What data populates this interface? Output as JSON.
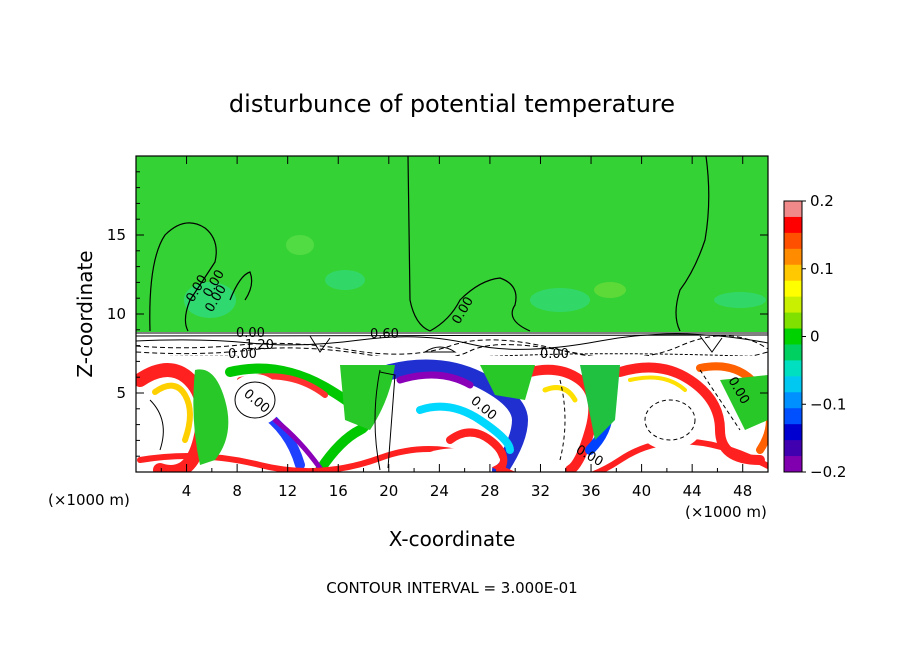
{
  "chart_data": {
    "type": "heatmap",
    "title": "disturbunce of potential temperature",
    "xlabel": "X-coordinate",
    "ylabel": "Z-coordinate",
    "x_unit_label_left": "(×1000 m)",
    "x_unit_label_right": "(×1000 m)",
    "xlim": [
      0,
      50
    ],
    "ylim": [
      0,
      20
    ],
    "xticks": [
      4,
      8,
      12,
      16,
      20,
      24,
      28,
      32,
      36,
      40,
      44,
      48
    ],
    "yticks": [
      5,
      10,
      15
    ],
    "footer": "CONTOUR INTERVAL = 3.000E-01",
    "colorbar": {
      "min": -0.2,
      "max": 0.2,
      "ticks": [
        0.2,
        0.1,
        0,
        -0.1,
        -0.2
      ],
      "tick_labels": [
        "0.2",
        "0.1",
        "0",
        "−0.1",
        "−0.2"
      ],
      "colors": [
        "#f08a8a",
        "#ff0000",
        "#ff5000",
        "#ff8c00",
        "#ffc800",
        "#ffff00",
        "#c8f000",
        "#80e000",
        "#00d200",
        "#00d060",
        "#00e0c0",
        "#00c8f0",
        "#0090ff",
        "#0050ff",
        "#0000d0",
        "#4000b0",
        "#8000b0"
      ]
    },
    "contour_labels": [
      "0.00",
      "0.00",
      "0.00",
      "0.00",
      "0.00",
      "0.00",
      "0.00",
      "0.60",
      "1.20",
      "0.00",
      "0.00",
      "0.00",
      "0.00"
    ]
  }
}
